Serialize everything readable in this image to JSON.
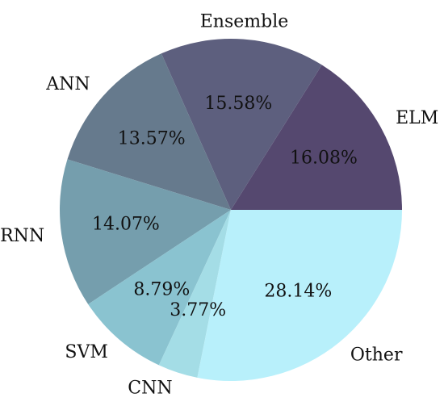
{
  "chart_data": {
    "type": "pie",
    "title": "",
    "start_angle_deg": 0,
    "direction": "counterclockwise",
    "slices": [
      {
        "label": "ELM",
        "value": 16.08,
        "pct_label": "16.08%",
        "color": "#55486f"
      },
      {
        "label": "Ensemble",
        "value": 15.58,
        "pct_label": "15.58%",
        "color": "#5d5f7e"
      },
      {
        "label": "ANN",
        "value": 13.57,
        "pct_label": "13.57%",
        "color": "#667a8d"
      },
      {
        "label": "RNN",
        "value": 14.07,
        "pct_label": "14.07%",
        "color": "#759ead"
      },
      {
        "label": "SVM",
        "value": 8.79,
        "pct_label": "8.79%",
        "color": "#8ac3d0"
      },
      {
        "label": "CNN",
        "value": 3.77,
        "pct_label": "3.77%",
        "color": "#a4dde6"
      },
      {
        "label": "Other",
        "value": 28.14,
        "pct_label": "28.14%",
        "color": "#b8f0fb"
      }
    ]
  }
}
